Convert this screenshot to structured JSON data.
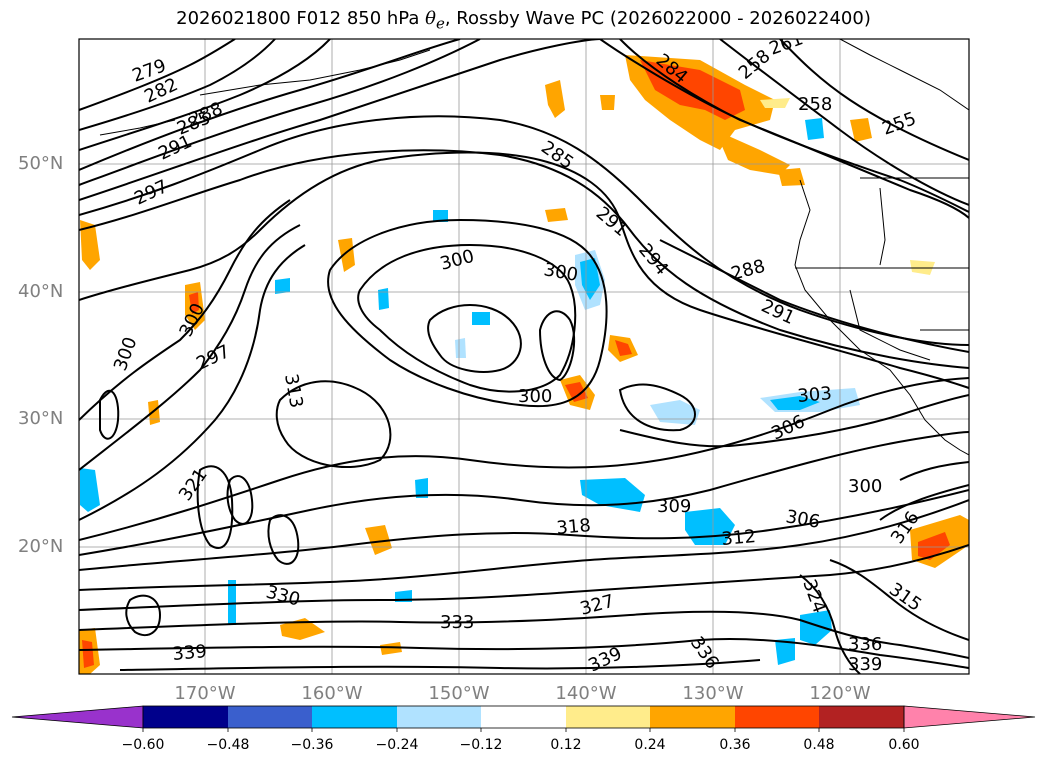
{
  "title": {
    "prefix": "2026021800 F012 850 hPa ",
    "theta": "θ",
    "sub": "e",
    "suffix": ", Rossby Wave PC (2026022000 - 2026022400)"
  },
  "latitude_labels": [
    "50°N",
    "40°N",
    "30°N",
    "20°N"
  ],
  "longitude_labels": [
    "170°W",
    "160°W",
    "150°W",
    "140°W",
    "130°W",
    "120°W"
  ],
  "contour_labels": [
    "279",
    "282",
    "285",
    "288",
    "291",
    "297",
    "261",
    "258",
    "258",
    "255",
    "284",
    "285",
    "291",
    "294",
    "288",
    "291",
    "300",
    "300",
    "300",
    "300",
    "297",
    "313",
    "321",
    "300",
    "303",
    "306",
    "309",
    "318",
    "306",
    "300",
    "312",
    "316",
    "315",
    "324",
    "327",
    "330",
    "333",
    "339",
    "339",
    "336",
    "336",
    "339"
  ],
  "colorbar": {
    "ticks": [
      "−0.60",
      "−0.48",
      "−0.36",
      "−0.24",
      "−0.12",
      "0.12",
      "0.24",
      "0.36",
      "0.48",
      "0.60"
    ],
    "colors": [
      "#9932cc",
      "#00008b",
      "#3a5fcd",
      "#00bfff",
      "#b0e2ff",
      "#ffffff",
      "#ffec8b",
      "#ffa500",
      "#ff4500",
      "#b22222",
      "#ff82ab"
    ]
  },
  "palette": {
    "orange": "#ffa500",
    "red": "#ff4500",
    "dark_red": "#b22222",
    "light_yellow": "#ffec8b",
    "sky_blue": "#00bfff",
    "light_blue": "#b0e2ff"
  }
}
